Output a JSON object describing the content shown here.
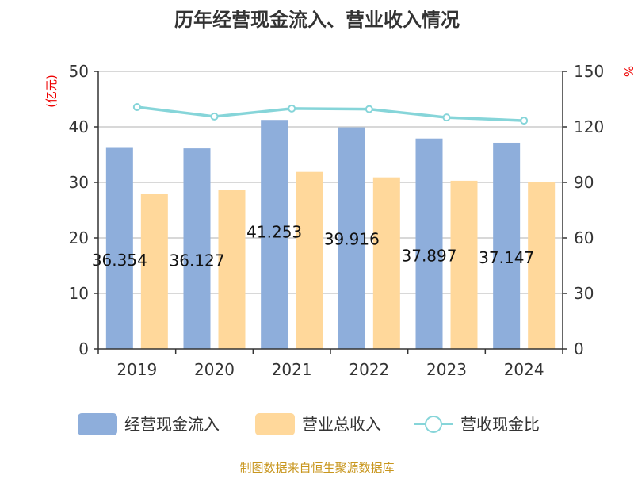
{
  "chart_data": {
    "type": "bar",
    "title": "历年经营现金流入、营业收入情况",
    "categories": [
      "2019",
      "2020",
      "2021",
      "2022",
      "2023",
      "2024"
    ],
    "left_axis_label": "(亿元)",
    "right_axis_label": "%",
    "left_ylim": [
      0,
      50
    ],
    "right_ylim": [
      0,
      150
    ],
    "left_ticks": [
      "0",
      "10",
      "20",
      "30",
      "40",
      "50"
    ],
    "right_ticks": [
      "0",
      "30",
      "60",
      "90",
      "120",
      "150"
    ],
    "series": [
      {
        "name": "经营现金流入",
        "type": "bar",
        "axis": "left",
        "color": "#8eaedb",
        "values": [
          36.354,
          36.127,
          41.253,
          39.916,
          37.897,
          37.147
        ],
        "labels": [
          "36.354",
          "36.127",
          "41.253",
          "39.916",
          "37.897",
          "37.147"
        ]
      },
      {
        "name": "营业总收入",
        "type": "bar",
        "axis": "left",
        "color": "#ffd89b",
        "values": [
          27.9,
          28.7,
          31.9,
          30.9,
          30.3,
          30.1
        ]
      },
      {
        "name": "营收现金比",
        "type": "line",
        "axis": "right",
        "color": "#86d5d9",
        "values": [
          130.7,
          125.6,
          129.9,
          129.6,
          125.1,
          123.4
        ]
      }
    ],
    "legend_position": "bottom",
    "grid": true
  },
  "footer": "制图数据来自恒生聚源数据库"
}
